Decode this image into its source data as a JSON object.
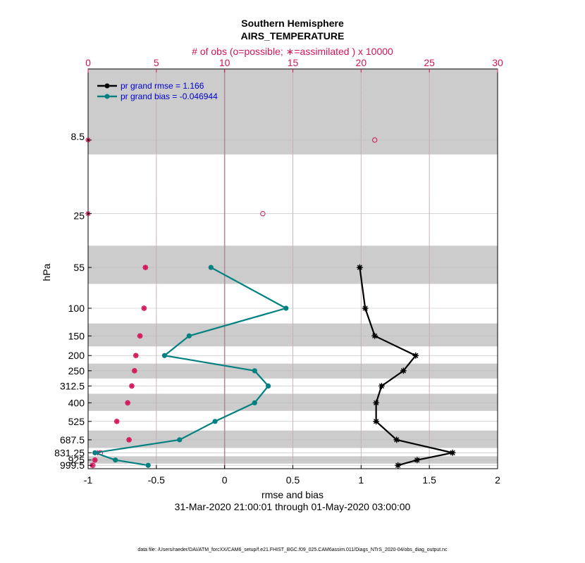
{
  "chart_data": {
    "type": "line",
    "title": "Southern Hemisphere",
    "subtitle": "AIRS_TEMPERATURE",
    "top_axis_label": "# of obs (o=possible; ∗=assimilated ) x 10000",
    "xlabel": "rmse and bias",
    "date_range": "31-Mar-2020 21:00:01 through 01-May-2020 03:00:00",
    "ylabel": "hPa",
    "footer": "data file: /Users/raeder/DAI/ATM_forcXX/CAM6_setup/f.e21.FHIST_BGC.f09_025.CAM6assim.011/Diags_NTrS_2020-04/obs_diag_output.nc",
    "xlim": [
      -1,
      2
    ],
    "xticks": [
      "-1",
      "-0.5",
      "0",
      "0.5",
      "1",
      "1.5",
      "2"
    ],
    "top_xlim": [
      0,
      30
    ],
    "top_xticks": [
      "0",
      "5",
      "10",
      "15",
      "20",
      "25",
      "30"
    ],
    "ylim": [
      3,
      1050
    ],
    "levels": [
      8.5,
      25,
      55,
      100,
      150,
      200,
      250,
      312.5,
      400,
      525,
      687.5,
      831.25,
      925,
      999.5
    ],
    "level_labels": [
      "8.5",
      "25",
      "55",
      "100",
      "150",
      "200",
      "250",
      "312.5",
      "400",
      "525",
      "687.5",
      "831.25",
      "925",
      "999.5"
    ],
    "series": [
      {
        "name": "pr grand rmse",
        "legend": "pr grand rmse = 1.166",
        "color": "#000000",
        "marker": "star",
        "levels": [
          55,
          100,
          150,
          200,
          250,
          312.5,
          400,
          525,
          687.5,
          831.25,
          925,
          999.5
        ],
        "values": [
          0.99,
          1.03,
          1.1,
          1.4,
          1.31,
          1.15,
          1.11,
          1.11,
          1.26,
          1.67,
          1.41,
          1.27
        ]
      },
      {
        "name": "pr grand bias",
        "legend": "pr grand bias = -0.046944",
        "color": "#008080",
        "marker": "dot",
        "levels": [
          55,
          100,
          150,
          200,
          250,
          312.5,
          400,
          525,
          687.5,
          831.25,
          925,
          999.5
        ],
        "values": [
          -0.1,
          0.45,
          -0.26,
          -0.44,
          0.22,
          0.32,
          0.22,
          -0.07,
          -0.33,
          -0.95,
          -0.8,
          -0.56
        ]
      }
    ],
    "obs_counts": {
      "color": "#d4145a",
      "levels": [
        8.5,
        25,
        55,
        100,
        150,
        200,
        250,
        312.5,
        400,
        525,
        687.5,
        831.25,
        925,
        999.5
      ],
      "possible": [
        21,
        12.8,
        4.2,
        4.1,
        3.8,
        3.5,
        3.4,
        3.2,
        2.9,
        2.1,
        3.0,
        0.9,
        0.5,
        0.35
      ],
      "assimilated": [
        0,
        0,
        4.2,
        4.1,
        3.8,
        3.5,
        3.4,
        3.2,
        2.9,
        2.1,
        3.0,
        0.7,
        0.5,
        0.3
      ]
    },
    "bands": [
      [
        3,
        10.5
      ],
      [
        40,
        70
      ],
      [
        125,
        175
      ],
      [
        225,
        280
      ],
      [
        350,
        450
      ],
      [
        600,
        775
      ],
      [
        875,
        975
      ]
    ]
  }
}
